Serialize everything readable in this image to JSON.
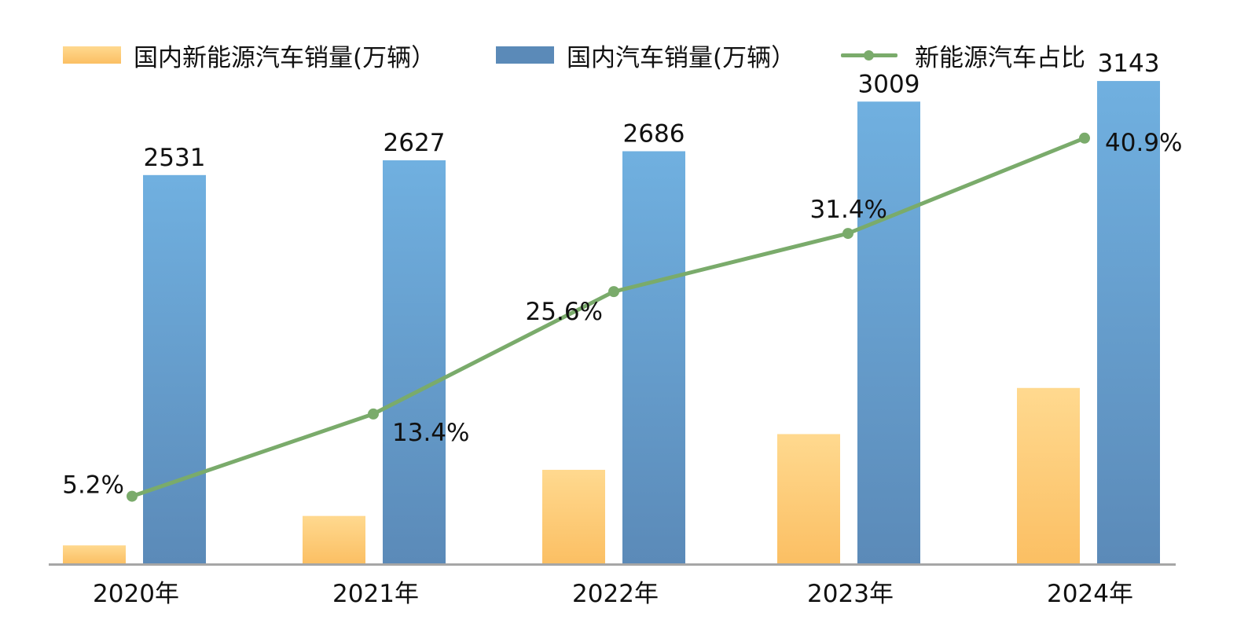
{
  "legend": {
    "nev_sales": "国内新能源汽车销量(万辆）",
    "total_sales": "国内汽车销量(万辆）",
    "nev_share": "新能源汽车占比"
  },
  "colors": {
    "nev_bar_top": "#ffd98f",
    "nev_bar_bottom": "#fbbf63",
    "total_bar_top": "#70b0e0",
    "total_bar_bottom": "#5b8ab8",
    "share_line": "#7aab6b",
    "axis": "#a6a6a6"
  },
  "chart_data": {
    "type": "bar+line",
    "title": "",
    "categories": [
      "2020年",
      "2021年",
      "2022年",
      "2023年",
      "2024年"
    ],
    "series": [
      {
        "name": "国内新能源汽车销量(万辆）",
        "type": "bar",
        "values": [
          137,
          352,
          689,
          950,
          1287
        ],
        "data_labels": false
      },
      {
        "name": "国内汽车销量(万辆）",
        "type": "bar",
        "values": [
          2531,
          2627,
          2686,
          3009,
          3143
        ],
        "labels": [
          "2531",
          "2627",
          "2686",
          "3009",
          "3143"
        ]
      },
      {
        "name": "新能源汽车占比",
        "type": "line",
        "axis": "secondary",
        "values": [
          5.2,
          13.4,
          25.6,
          31.4,
          40.9
        ],
        "labels": [
          "5.2%",
          "13.4%",
          "25.6%",
          "31.4%",
          "40.9%"
        ]
      }
    ],
    "ylim": [
      0,
      3350
    ],
    "y2lim": [
      0,
      51
    ],
    "grid": false,
    "legend_position": "top"
  }
}
